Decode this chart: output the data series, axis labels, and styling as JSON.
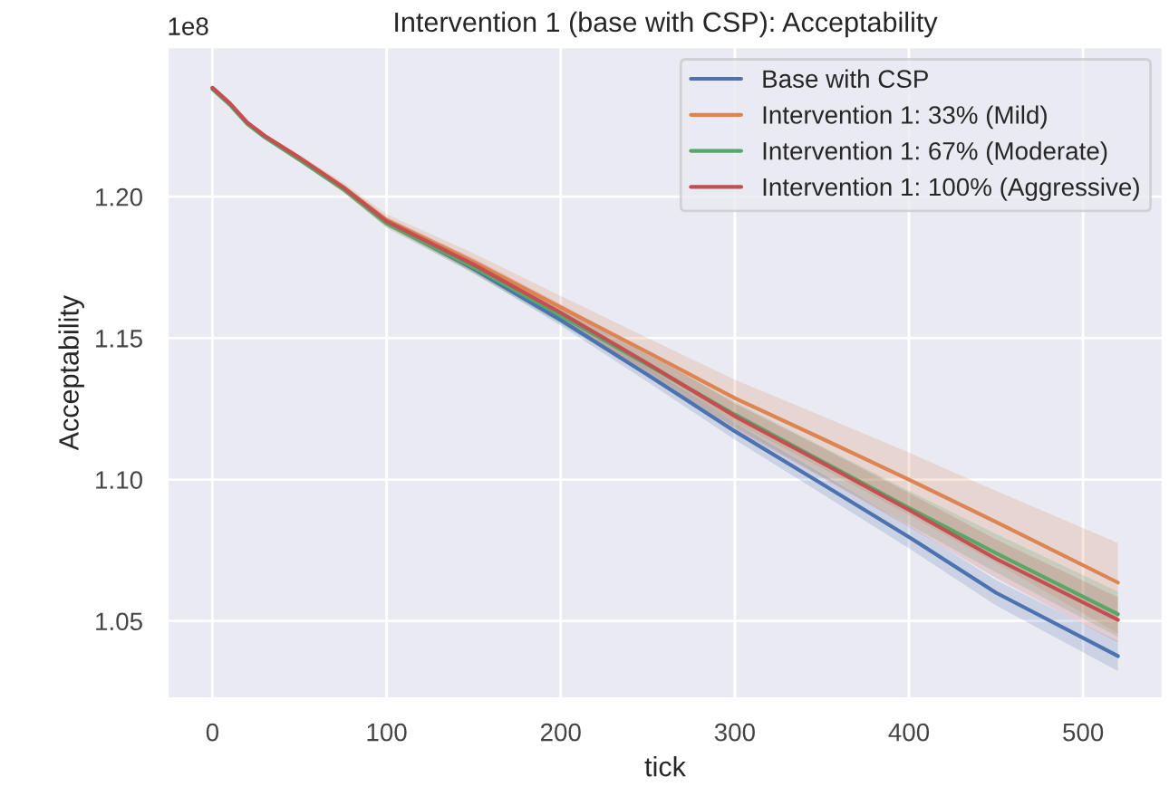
{
  "chart_data": {
    "type": "line",
    "title": "Intervention 1 (base with CSP): Acceptability",
    "xlabel": "tick",
    "ylabel": "Acceptability",
    "annotations": [
      "1e8"
    ],
    "x": [
      0,
      10,
      20,
      30,
      50,
      75,
      100,
      150,
      200,
      250,
      300,
      350,
      400,
      450,
      520
    ],
    "series": [
      {
        "name": "Base with CSP",
        "color": "#4c72b0",
        "values": [
          null,
          null,
          null,
          null,
          null,
          1.203,
          1.1908,
          1.1745,
          1.1564,
          1.137,
          1.1171,
          1.0985,
          1.0797,
          1.06,
          1.0376
        ],
        "lower": [
          1.2385,
          1.2329,
          1.226,
          1.2212,
          1.213,
          1.2023,
          1.1898,
          1.173,
          1.1544,
          1.1345,
          1.1141,
          1.095,
          1.0757,
          1.0555,
          1.0323
        ],
        "upper": [
          1.2385,
          1.2331,
          1.2264,
          1.2218,
          1.214,
          1.2037,
          1.1918,
          1.176,
          1.1584,
          1.1395,
          1.1201,
          1.102,
          1.0837,
          1.0645,
          1.0429
        ]
      },
      {
        "name": "Intervention 1: 33% (Mild)",
        "color": "#dd8452",
        "values": [
          1.2385,
          1.233,
          1.2262,
          1.2215,
          1.2138,
          1.2035,
          1.1918,
          1.177,
          1.1609,
          1.145,
          1.1288,
          1.1145,
          1.1,
          1.085,
          1.0636
        ],
        "lower": [
          1.2385,
          1.2328,
          1.2257,
          1.2207,
          1.2125,
          1.2015,
          1.1892,
          1.173,
          1.1557,
          1.1385,
          1.1203,
          1.104,
          1.0875,
          1.0705,
          1.0456
        ],
        "upper": [
          1.2385,
          1.2332,
          1.2266,
          1.2221,
          1.2148,
          1.205,
          1.1938,
          1.18,
          1.1649,
          1.15,
          1.1353,
          1.1225,
          1.1095,
          1.096,
          1.0776
        ]
      },
      {
        "name": "Intervention 1: 67% (Moderate)",
        "color": "#55a868",
        "values": [
          1.238,
          1.2325,
          1.2257,
          1.221,
          1.213,
          1.2027,
          1.1905,
          1.175,
          1.158,
          1.1405,
          1.123,
          1.1065,
          1.09,
          1.074,
          1.0524
        ],
        "lower": [
          1.238,
          1.2324,
          1.2255,
          1.2206,
          1.2123,
          1.2017,
          1.189,
          1.1728,
          1.155,
          1.1367,
          1.1185,
          1.1012,
          1.084,
          1.0672,
          1.0444
        ],
        "upper": [
          1.238,
          1.2326,
          1.2259,
          1.2214,
          1.2137,
          1.2037,
          1.192,
          1.1772,
          1.161,
          1.1443,
          1.1275,
          1.1118,
          1.096,
          1.0808,
          1.0604
        ]
      },
      {
        "name": "Intervention 1: 100% (Aggressive)",
        "color": "#c44e52",
        "values": [
          1.2385,
          1.233,
          1.2262,
          1.2215,
          1.2137,
          1.2033,
          1.1913,
          1.176,
          1.159,
          1.141,
          1.1224,
          1.106,
          1.0893,
          1.072,
          1.0504
        ],
        "lower": [
          1.2385,
          1.2329,
          1.226,
          1.2211,
          1.213,
          1.2023,
          1.1898,
          1.1738,
          1.156,
          1.1372,
          1.1179,
          1.1007,
          1.0833,
          1.0652,
          1.0424
        ],
        "upper": [
          1.2385,
          1.2331,
          1.2264,
          1.2219,
          1.2144,
          1.2043,
          1.1928,
          1.1782,
          1.162,
          1.1448,
          1.1269,
          1.1113,
          1.0953,
          1.0788,
          1.0584
        ]
      }
    ],
    "xlim": [
      -26,
      546
    ],
    "xticks": [
      0,
      100,
      200,
      300,
      400,
      500
    ],
    "ylim": [
      1.0225,
      1.253
    ],
    "yticks": [
      1.05,
      {
        "value": 1.1,
        "label": "1.10"
      },
      1.15,
      {
        "value": 1.2,
        "label": "1.20"
      }
    ],
    "grid": true,
    "legend": "top right"
  }
}
